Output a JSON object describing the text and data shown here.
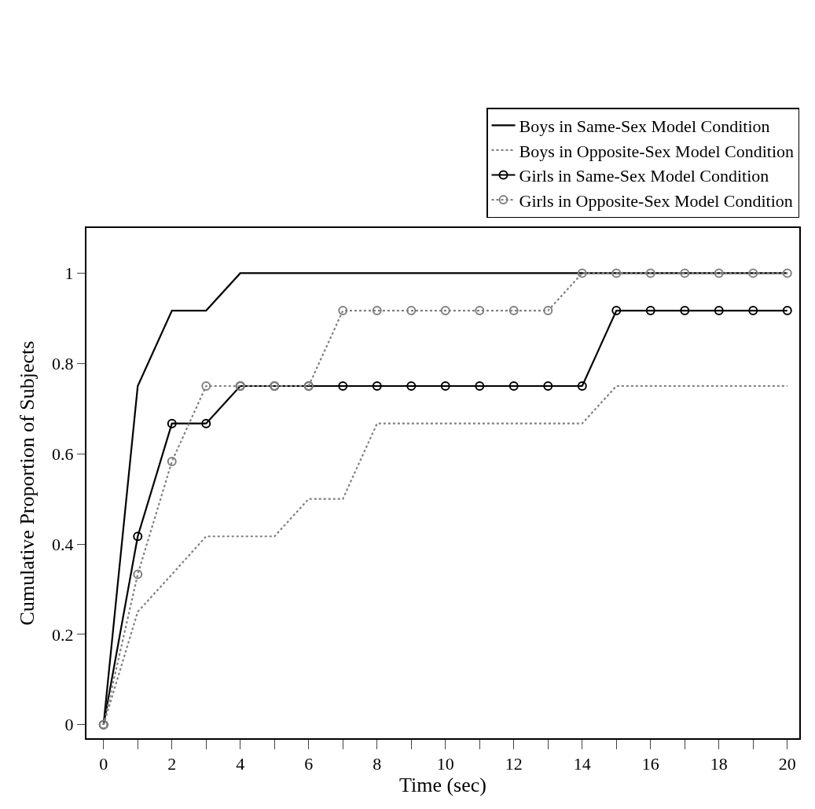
{
  "chart_data": {
    "type": "line",
    "xlabel": "Time (sec)",
    "ylabel": "Cumulative Proportion of Subjects",
    "x": [
      0,
      1,
      2,
      3,
      4,
      5,
      6,
      7,
      8,
      9,
      10,
      11,
      12,
      13,
      14,
      15,
      16,
      17,
      18,
      19,
      20
    ],
    "series": [
      {
        "name": "Boys in Same-Sex Model Condition",
        "color": "#000000",
        "line_style": "solid",
        "marker": "none",
        "values": [
          0,
          0.75,
          0.917,
          0.917,
          1,
          1,
          1,
          1,
          1,
          1,
          1,
          1,
          1,
          1,
          1,
          1,
          1,
          1,
          1,
          1,
          1
        ]
      },
      {
        "name": "Boys in Opposite-Sex Model Condition",
        "color": "#808080",
        "line_style": "dotted",
        "marker": "none",
        "values": [
          0,
          0.25,
          0.333,
          0.417,
          0.417,
          0.417,
          0.5,
          0.5,
          0.667,
          0.667,
          0.667,
          0.667,
          0.667,
          0.667,
          0.667,
          0.75,
          0.75,
          0.75,
          0.75,
          0.75,
          0.75
        ]
      },
      {
        "name": "Girls in Same-Sex Model Condition",
        "color": "#000000",
        "line_style": "solid",
        "marker": "circle",
        "values": [
          0,
          0.417,
          0.667,
          0.667,
          0.75,
          0.75,
          0.75,
          0.75,
          0.75,
          0.75,
          0.75,
          0.75,
          0.75,
          0.75,
          0.75,
          0.917,
          0.917,
          0.917,
          0.917,
          0.917,
          0.917
        ]
      },
      {
        "name": "Girls in Opposite-Sex Model Condition",
        "color": "#808080",
        "line_style": "dotted",
        "marker": "circle",
        "values": [
          0,
          0.333,
          0.583,
          0.75,
          0.75,
          0.75,
          0.75,
          0.917,
          0.917,
          0.917,
          0.917,
          0.917,
          0.917,
          0.917,
          1,
          1,
          1,
          1,
          1,
          1,
          1
        ]
      }
    ],
    "xlim": [
      -0.5,
      20.35
    ],
    "ylim": [
      -0.03,
      1.1
    ],
    "xticks": [
      0,
      {
        "value": 1,
        "label": null
      },
      2,
      {
        "value": 3,
        "label": null
      },
      4,
      {
        "value": 5,
        "label": null
      },
      6,
      {
        "value": 7,
        "label": null
      },
      8,
      {
        "value": 9,
        "label": null
      },
      10,
      {
        "value": 11,
        "label": null
      },
      12,
      {
        "value": 13,
        "label": null
      },
      14,
      {
        "value": 15,
        "label": null
      },
      16,
      {
        "value": 17,
        "label": null
      },
      18,
      {
        "value": 19,
        "label": null
      },
      20
    ],
    "yticks": [
      0,
      0.2,
      0.4,
      0.6,
      0.8,
      1
    ],
    "legend": "top right"
  }
}
